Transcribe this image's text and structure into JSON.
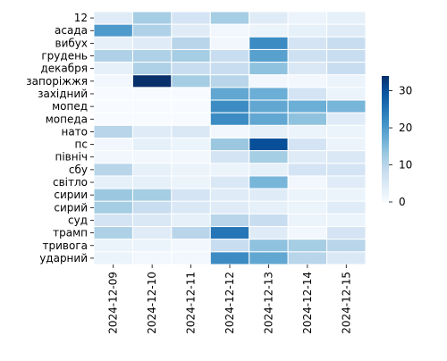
{
  "chart_data": {
    "type": "heatmap",
    "title": "",
    "xlabel": "",
    "ylabel": "",
    "x_categories": [
      "2024-12-09",
      "2024-12-10",
      "2024-12-11",
      "2024-12-12",
      "2024-12-13",
      "2024-12-14",
      "2024-12-15"
    ],
    "y_categories": [
      "12",
      "асада",
      "вибух",
      "грудень",
      "декабря",
      "запоріжжя",
      "західний",
      "мопед",
      "мопеда",
      "нато",
      "пс",
      "північ",
      "сбу",
      "світло",
      "сирии",
      "сирий",
      "суд",
      "трамп",
      "тривога",
      "ударний"
    ],
    "values": [
      [
        4,
        12,
        6,
        12,
        4,
        2,
        3
      ],
      [
        20,
        11,
        4,
        1,
        2,
        3,
        4
      ],
      [
        3,
        4,
        10,
        1,
        22,
        6,
        8
      ],
      [
        11,
        11,
        12,
        8,
        19,
        7,
        8
      ],
      [
        3,
        11,
        8,
        8,
        14,
        5,
        8
      ],
      [
        1,
        34,
        12,
        10,
        1,
        1,
        2
      ],
      [
        0,
        0,
        0,
        18,
        17,
        6,
        2
      ],
      [
        0,
        0,
        0,
        22,
        18,
        17,
        16
      ],
      [
        0,
        0,
        0,
        22,
        18,
        14,
        4
      ],
      [
        10,
        4,
        5,
        1,
        3,
        2,
        2
      ],
      [
        1,
        3,
        2,
        13,
        30,
        6,
        2
      ],
      [
        1,
        1,
        1,
        6,
        12,
        4,
        5
      ],
      [
        10,
        3,
        2,
        2,
        3,
        6,
        6
      ],
      [
        3,
        3,
        2,
        5,
        16,
        1,
        4
      ],
      [
        13,
        12,
        6,
        4,
        4,
        2,
        2
      ],
      [
        12,
        8,
        5,
        4,
        3,
        2,
        4
      ],
      [
        6,
        5,
        3,
        10,
        8,
        2,
        2
      ],
      [
        11,
        4,
        10,
        25,
        4,
        1,
        6
      ],
      [
        2,
        2,
        1,
        8,
        14,
        12,
        10
      ],
      [
        2,
        1,
        1,
        22,
        18,
        10,
        5
      ]
    ],
    "colorbar": {
      "min": 0,
      "max": 34,
      "ticks": [
        0,
        10,
        20,
        30
      ],
      "colormap": "Blues"
    },
    "grid": false,
    "legend": "colorbar-right"
  }
}
